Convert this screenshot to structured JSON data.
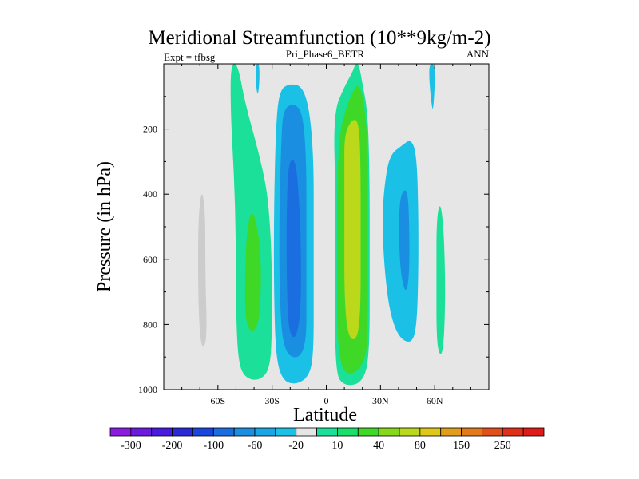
{
  "chart_data": {
    "type": "filled-contour",
    "title": "Meridional Streamfunction (10**9kg/m-2)",
    "left_string": "Expt = tfbsg",
    "center_string": "Pri_Phase6_BETR",
    "right_string": "ANN",
    "xlabel": "Latitude",
    "ylabel": "Pressure (in hPa)",
    "xlim": [
      -90,
      90
    ],
    "ylim": [
      0,
      1000
    ],
    "y_reversed": true,
    "x_ticks": [
      {
        "value": -60,
        "label": "60S"
      },
      {
        "value": -30,
        "label": "30S"
      },
      {
        "value": 0,
        "label": "0"
      },
      {
        "value": 30,
        "label": "30N"
      },
      {
        "value": 60,
        "label": "60N"
      }
    ],
    "y_ticks": [
      {
        "value": 200,
        "label": "200"
      },
      {
        "value": 400,
        "label": "400"
      },
      {
        "value": 600,
        "label": "600"
      },
      {
        "value": 800,
        "label": "800"
      },
      {
        "value": 1000,
        "label": "1000"
      }
    ],
    "background_color": "#e6e6e6",
    "colorbar": {
      "colors": [
        "#8c1ae0",
        "#6c1ae0",
        "#4a1ae0",
        "#2a2ad8",
        "#1a46e0",
        "#1a6ee0",
        "#1a8ee0",
        "#1aa6e6",
        "#1ac0e6",
        "#e6e6e6",
        "#1ae09a",
        "#1ae06a",
        "#40d826",
        "#86d81a",
        "#bcd81a",
        "#e0c81a",
        "#e09e1a",
        "#e07a1a",
        "#e0501a",
        "#e0301a",
        "#e01a1a"
      ],
      "labels": [
        "-300",
        "-200",
        "-100",
        "-60",
        "-20",
        "10",
        "40",
        "80",
        "150",
        "250"
      ]
    },
    "regions": [
      {
        "name": "nh-high-lat-north-cell",
        "level": 20,
        "points": [
          [
            -69,
            380
          ],
          [
            -71,
            480
          ],
          [
            -71,
            700
          ],
          [
            -70,
            840
          ],
          [
            -68,
            880
          ],
          [
            -66,
            830
          ],
          [
            -67,
            650
          ],
          [
            -67,
            450
          ]
        ]
      },
      {
        "name": "sh-ferrel-column",
        "level": 10,
        "points": [
          [
            -53,
            0
          ],
          [
            -49,
            0
          ],
          [
            -45,
            120
          ],
          [
            -38,
            260
          ],
          [
            -33,
            380
          ],
          [
            -31,
            500
          ],
          [
            -30,
            650
          ],
          [
            -30,
            800
          ],
          [
            -31,
            940
          ],
          [
            -38,
            975
          ],
          [
            -46,
            960
          ],
          [
            -49,
            900
          ],
          [
            -50,
            750
          ],
          [
            -50,
            550
          ],
          [
            -51,
            350
          ],
          [
            -53,
            150
          ]
        ]
      },
      {
        "name": "sh-ferrel-core",
        "level": 40,
        "points": [
          [
            -41,
            440
          ],
          [
            -37,
            530
          ],
          [
            -36,
            650
          ],
          [
            -37,
            790
          ],
          [
            -41,
            830
          ],
          [
            -45,
            790
          ],
          [
            -45,
            640
          ],
          [
            -44,
            510
          ]
        ]
      },
      {
        "name": "south-tropical-cell",
        "level": -20,
        "points": [
          [
            -26,
            80
          ],
          [
            -20,
            60
          ],
          [
            -13,
            70
          ],
          [
            -9,
            150
          ],
          [
            -7,
            300
          ],
          [
            -7,
            500
          ],
          [
            -7,
            700
          ],
          [
            -7,
            880
          ],
          [
            -9,
            955
          ],
          [
            -16,
            985
          ],
          [
            -24,
            975
          ],
          [
            -28,
            900
          ],
          [
            -29,
            700
          ],
          [
            -29,
            450
          ],
          [
            -28,
            200
          ]
        ]
      },
      {
        "name": "south-tropical-mid",
        "level": -60,
        "points": [
          [
            -24,
            140
          ],
          [
            -18,
            120
          ],
          [
            -13,
            150
          ],
          [
            -11,
            300
          ],
          [
            -11,
            500
          ],
          [
            -11,
            700
          ],
          [
            -11,
            860
          ],
          [
            -16,
            910
          ],
          [
            -24,
            880
          ],
          [
            -26,
            700
          ],
          [
            -26,
            450
          ],
          [
            -25,
            250
          ]
        ]
      },
      {
        "name": "south-tropical-core",
        "level": -100,
        "points": [
          [
            -21,
            300
          ],
          [
            -17,
            290
          ],
          [
            -15,
            420
          ],
          [
            -14,
            560
          ],
          [
            -14,
            760
          ],
          [
            -17,
            850
          ],
          [
            -21,
            820
          ],
          [
            -22,
            650
          ],
          [
            -22,
            450
          ]
        ]
      },
      {
        "name": "north-tropical-cell-outer",
        "level": 10,
        "points": [
          [
            4,
            150
          ],
          [
            10,
            70
          ],
          [
            15,
            20
          ],
          [
            16,
            0
          ],
          [
            18,
            0
          ],
          [
            20,
            60
          ],
          [
            23,
            150
          ],
          [
            24,
            350
          ],
          [
            24,
            600
          ],
          [
            24,
            900
          ],
          [
            20,
            980
          ],
          [
            10,
            990
          ],
          [
            5,
            950
          ],
          [
            5,
            700
          ],
          [
            5,
            400
          ]
        ]
      },
      {
        "name": "north-tropical-cell",
        "level": 40,
        "points": [
          [
            7,
            230
          ],
          [
            10,
            150
          ],
          [
            15,
            80
          ],
          [
            18,
            60
          ],
          [
            21,
            120
          ],
          [
            23,
            250
          ],
          [
            23,
            500
          ],
          [
            23,
            800
          ],
          [
            22,
            910
          ],
          [
            15,
            955
          ],
          [
            9,
            945
          ],
          [
            6,
            850
          ],
          [
            6,
            600
          ],
          [
            6,
            400
          ]
        ]
      },
      {
        "name": "north-tropical-core",
        "level": 80,
        "points": [
          [
            10,
            220
          ],
          [
            14,
            170
          ],
          [
            18,
            175
          ],
          [
            19,
            300
          ],
          [
            19,
            550
          ],
          [
            19,
            760
          ],
          [
            17,
            850
          ],
          [
            12,
            840
          ],
          [
            10,
            720
          ],
          [
            10,
            500
          ],
          [
            10,
            320
          ]
        ]
      },
      {
        "name": "nh-ferrel-cell",
        "level": -20,
        "points": [
          [
            32,
            380
          ],
          [
            35,
            280
          ],
          [
            42,
            250
          ],
          [
            47,
            230
          ],
          [
            50,
            280
          ],
          [
            51,
            450
          ],
          [
            51,
            650
          ],
          [
            50,
            810
          ],
          [
            47,
            860
          ],
          [
            40,
            840
          ],
          [
            35,
            760
          ],
          [
            32,
            620
          ],
          [
            31,
            480
          ]
        ]
      },
      {
        "name": "nh-ferrel-mid",
        "level": -60,
        "points": [
          [
            41,
            400
          ],
          [
            45,
            380
          ],
          [
            46,
            500
          ],
          [
            46,
            650
          ],
          [
            44,
            710
          ],
          [
            41,
            640
          ],
          [
            40,
            500
          ]
        ]
      },
      {
        "name": "nh-polar-cell",
        "level": 10,
        "points": [
          [
            63,
            420
          ],
          [
            65,
            500
          ],
          [
            66,
            700
          ],
          [
            65,
            870
          ],
          [
            63,
            900
          ],
          [
            61,
            850
          ],
          [
            61,
            650
          ],
          [
            61,
            480
          ]
        ]
      },
      {
        "name": "top-blob-sh",
        "level": -20,
        "points": [
          [
            -39,
            0
          ],
          [
            -37,
            0
          ],
          [
            -37,
            60
          ],
          [
            -38,
            100
          ],
          [
            -39,
            60
          ]
        ]
      },
      {
        "name": "top-blob-nh",
        "level": -20,
        "points": [
          [
            57,
            0
          ],
          [
            60,
            0
          ],
          [
            60,
            80
          ],
          [
            59,
            150
          ],
          [
            58,
            110
          ],
          [
            57,
            50
          ]
        ]
      }
    ]
  }
}
